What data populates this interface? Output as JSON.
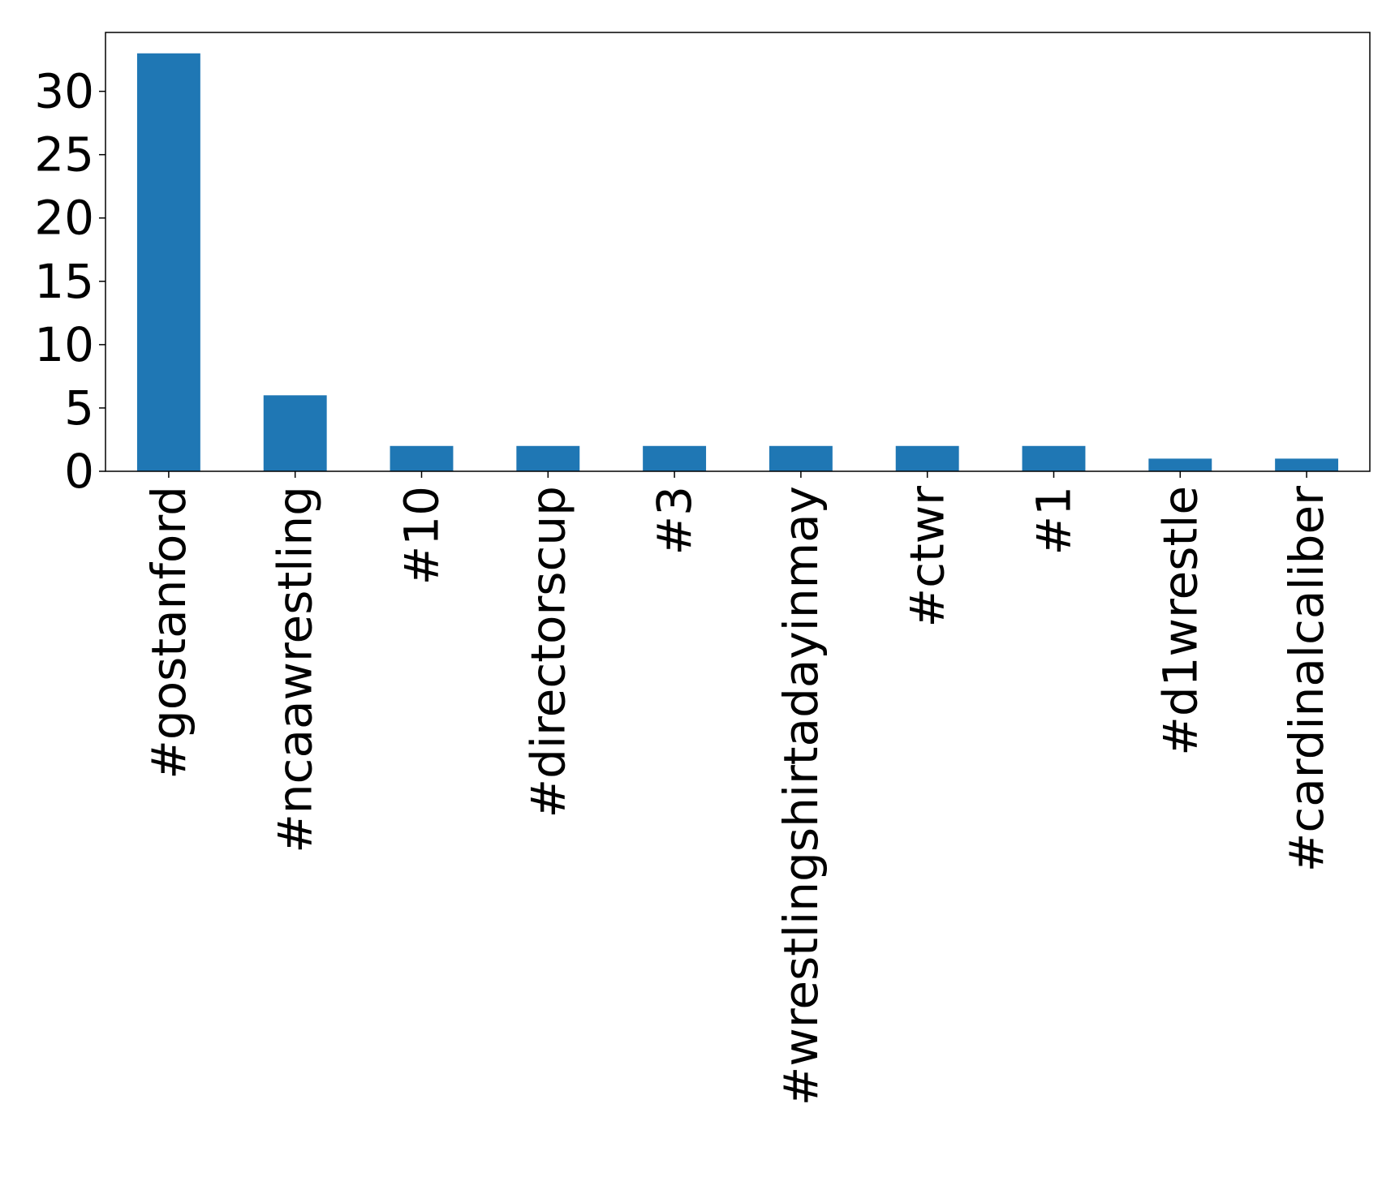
{
  "chart_data": {
    "type": "bar",
    "categories": [
      "#gostanford",
      "#ncaawrestling",
      "#10",
      "#directorscup",
      "#3",
      "#wrestlingshirtadayinmay",
      "#ctwr",
      "#1",
      "#d1wrestle",
      "#cardinalcaliber"
    ],
    "values": [
      33,
      6,
      2,
      2,
      2,
      2,
      2,
      2,
      1,
      1
    ],
    "yticks": [
      0,
      5,
      10,
      15,
      20,
      25,
      30
    ],
    "ylim": [
      0,
      34.65
    ],
    "title": "",
    "xlabel": "",
    "ylabel": "",
    "grid": false,
    "legend": "none",
    "bar_color": "#1f77b4"
  }
}
